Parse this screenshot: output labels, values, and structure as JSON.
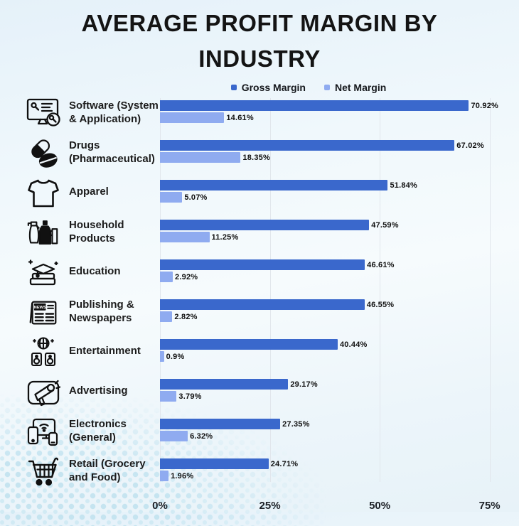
{
  "page_title": "AVERAGE PROFIT MARGIN BY INDUSTRY",
  "legend": {
    "items": [
      {
        "label": "Gross Margin",
        "color": "#3a68cc"
      },
      {
        "label": "Net Margin",
        "color": "#8fabf0"
      }
    ]
  },
  "icons": [
    "software-icon",
    "drugs-icon",
    "apparel-icon",
    "household-products-icon",
    "education-icon",
    "newspaper-icon",
    "entertainment-icon",
    "advertising-icon",
    "electronics-icon",
    "retail-cart-icon"
  ],
  "chart_data": {
    "type": "bar",
    "orientation": "horizontal",
    "title": "AVERAGE PROFIT MARGIN BY INDUSTRY",
    "categories": [
      "Software (System & Application)",
      "Drugs (Pharmaceutical)",
      "Apparel",
      "Household Products",
      "Education",
      "Publishing & Newspapers",
      "Entertainment",
      "Advertising",
      "Electronics (General)",
      "Retail (Grocery and Food)"
    ],
    "series": [
      {
        "name": "Gross Margin",
        "color": "#3a68cc",
        "values": [
          70.92,
          67.02,
          51.84,
          47.59,
          46.61,
          46.55,
          40.44,
          29.17,
          27.35,
          24.71
        ]
      },
      {
        "name": "Net Margin",
        "color": "#8fabf0",
        "values": [
          14.61,
          18.35,
          5.07,
          11.25,
          2.92,
          2.82,
          0.9,
          3.79,
          6.32,
          1.96
        ]
      }
    ],
    "data_labels": {
      "gross": [
        "70.92%",
        "67.02%",
        "51.84%",
        "47.59%",
        "46.61%",
        "46.55%",
        "40.44%",
        "29.17%",
        "27.35%",
        "24.71%"
      ],
      "net": [
        "14.61%",
        "18.35%",
        "5.07%",
        "11.25%",
        "2.92%",
        "2.82%",
        "0.9%",
        "3.79%",
        "6.32%",
        "1.96%"
      ]
    },
    "xlim": [
      0,
      77
    ],
    "xticks": [
      "0%",
      "25%",
      "50%",
      "75%"
    ],
    "xtick_values": [
      0,
      25,
      50,
      75
    ],
    "grid": "vertical",
    "legend_position": "top"
  }
}
